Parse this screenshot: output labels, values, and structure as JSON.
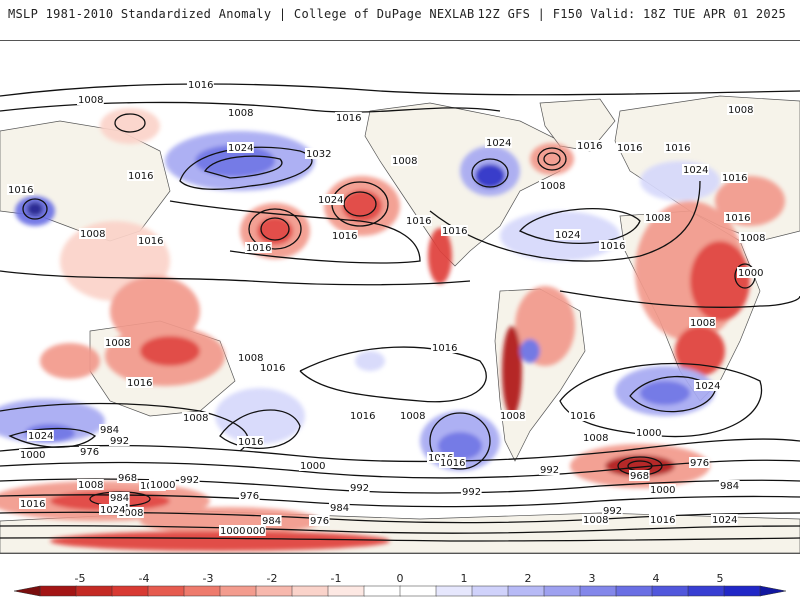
{
  "header": {
    "left": "MSLP 1981-2010 Standardized Anomaly | College of DuPage NEXLAB",
    "right": "12Z GFS | F150 Valid: 18Z TUE APR 01 2025"
  },
  "colors": {
    "neg_strong": "#b01818",
    "neg_mid": "#e0403a",
    "neg_light": "#f29a8c",
    "neg_faint": "#fbd3c9",
    "pos_faint": "#d6d8fb",
    "pos_light": "#a7aaf2",
    "pos_mid": "#6a6fe4",
    "pos_strong": "#2a2fc8",
    "land": "#f3efe3",
    "coast": "#444444",
    "isobar": "#111111"
  },
  "isobar_labels": [
    {
      "text": "1016"
    },
    {
      "text": "1008"
    },
    {
      "text": "1008"
    },
    {
      "text": "1016"
    },
    {
      "text": "1016"
    },
    {
      "text": "1016"
    },
    {
      "text": "1008"
    },
    {
      "text": "1016"
    },
    {
      "text": "1008"
    },
    {
      "text": "1016"
    },
    {
      "text": "1016"
    },
    {
      "text": "1024"
    },
    {
      "text": "1032"
    },
    {
      "text": "1024"
    },
    {
      "text": "1024"
    },
    {
      "text": "1016"
    },
    {
      "text": "1016"
    },
    {
      "text": "1016"
    },
    {
      "text": "1016"
    },
    {
      "text": "1016"
    },
    {
      "text": "1008"
    },
    {
      "text": "1024"
    },
    {
      "text": "1008"
    },
    {
      "text": "1016"
    },
    {
      "text": "1024"
    },
    {
      "text": "1016"
    },
    {
      "text": "1008"
    },
    {
      "text": "1016"
    },
    {
      "text": "1008"
    },
    {
      "text": "1000"
    },
    {
      "text": "1008"
    },
    {
      "text": "1008"
    },
    {
      "text": "1016"
    },
    {
      "text": "1008"
    },
    {
      "text": "1016"
    },
    {
      "text": "1008"
    },
    {
      "text": "1016"
    },
    {
      "text": "1024"
    },
    {
      "text": "1016"
    },
    {
      "text": "1016"
    },
    {
      "text": "1016"
    },
    {
      "text": "1008"
    },
    {
      "text": "1008"
    },
    {
      "text": "1008"
    },
    {
      "text": "1024"
    },
    {
      "text": "1016"
    },
    {
      "text": "1000"
    },
    {
      "text": "984"
    },
    {
      "text": "1008"
    },
    {
      "text": "992"
    },
    {
      "text": "976"
    },
    {
      "text": "1000"
    },
    {
      "text": "984"
    },
    {
      "text": "968"
    },
    {
      "text": "984"
    },
    {
      "text": "1008"
    },
    {
      "text": "1000"
    },
    {
      "text": "992"
    },
    {
      "text": "976"
    },
    {
      "text": "1016"
    },
    {
      "text": "1024"
    },
    {
      "text": "1016"
    },
    {
      "text": "1000"
    },
    {
      "text": "992"
    },
    {
      "text": "984"
    },
    {
      "text": "976"
    },
    {
      "text": "984"
    },
    {
      "text": "992"
    },
    {
      "text": "992"
    },
    {
      "text": "1000"
    },
    {
      "text": "968"
    },
    {
      "text": "976"
    },
    {
      "text": "984"
    },
    {
      "text": "1000"
    },
    {
      "text": "1008"
    },
    {
      "text": "992"
    },
    {
      "text": "1016"
    },
    {
      "text": "1024"
    },
    {
      "text": "1000"
    },
    {
      "text": "1000"
    }
  ],
  "colorbar": {
    "ticks": [
      "-5",
      "-4",
      "-3",
      "-2",
      "-1",
      "0",
      "1",
      "2",
      "3",
      "4",
      "5"
    ],
    "colors": [
      "#a31515",
      "#c42a24",
      "#d83a33",
      "#e65b4f",
      "#ee7b6d",
      "#f39c8e",
      "#f7b8ad",
      "#fad3ca",
      "#fde8e3",
      "#ffffff",
      "#ffffff",
      "#e6e7fd",
      "#d0d2fb",
      "#b7baf6",
      "#9ea1f0",
      "#8387ea",
      "#6a6fe4",
      "#5157dc",
      "#383ed2",
      "#2127c7"
    ]
  }
}
